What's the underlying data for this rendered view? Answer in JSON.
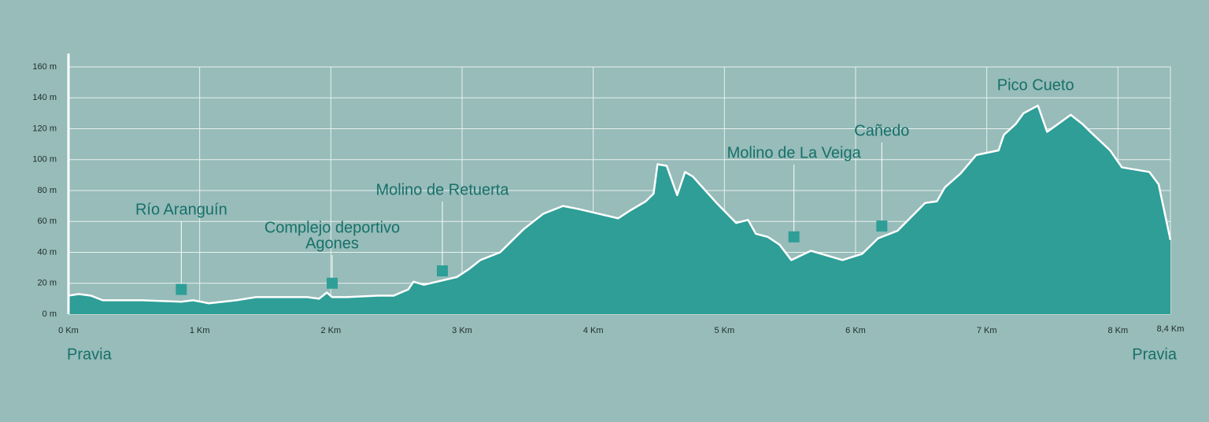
{
  "chart_data": {
    "type": "area",
    "x": [
      0,
      0.08,
      0.17,
      0.26,
      0.56,
      0.86,
      0.95,
      1.07,
      1.28,
      1.43,
      1.82,
      1.91,
      1.97,
      2.01,
      2.12,
      2.36,
      2.48,
      2.59,
      2.63,
      2.71,
      2.96,
      3.05,
      3.14,
      3.29,
      3.35,
      3.47,
      3.62,
      3.77,
      3.89,
      4.04,
      4.19,
      4.28,
      4.4,
      4.46,
      4.49,
      4.56,
      4.64,
      4.7,
      4.76,
      4.94,
      5.09,
      5.18,
      5.24,
      5.33,
      5.42,
      5.51,
      5.66,
      5.9,
      6.05,
      6.17,
      6.32,
      6.53,
      6.62,
      6.68,
      6.8,
      6.92,
      7.09,
      7.13,
      7.22,
      7.28,
      7.39,
      7.46,
      7.64,
      7.73,
      7.79,
      7.94,
      8.03,
      8.24,
      8.31,
      8.4
    ],
    "values": [
      12,
      13,
      12,
      9,
      9,
      8,
      9,
      7,
      9,
      11,
      11,
      10,
      14,
      11,
      11,
      12,
      12,
      16,
      21,
      19,
      24,
      29,
      35,
      40,
      45,
      55,
      65,
      70,
      68,
      65,
      62,
      67,
      73,
      78,
      97,
      96,
      77,
      92,
      89,
      72,
      59,
      61,
      52,
      50,
      45,
      35,
      41,
      35,
      39,
      49,
      54,
      72,
      73,
      82,
      91,
      103,
      106,
      116,
      123,
      130,
      135,
      118,
      129,
      123,
      118,
      106,
      95,
      92,
      84,
      48
    ],
    "color": "#2e9e97",
    "xlim": [
      0,
      8.4
    ],
    "ylim": [
      0,
      160
    ],
    "xticks": [
      {
        "value": 0,
        "label": "0 Km"
      },
      {
        "value": 1,
        "label": "1 Km"
      },
      {
        "value": 2,
        "label": "2 Km"
      },
      {
        "value": 3,
        "label": "3 Km"
      },
      {
        "value": 4,
        "label": "4 Km"
      },
      {
        "value": 5,
        "label": "5 Km"
      },
      {
        "value": 6,
        "label": "6 Km"
      },
      {
        "value": 7,
        "label": "7 Km"
      },
      {
        "value": 8,
        "label": "8 Km"
      },
      {
        "value": 8.4,
        "label": "8,4 Km"
      }
    ],
    "yticks": [
      {
        "value": 0,
        "label": "0 m"
      },
      {
        "value": 20,
        "label": "20 m"
      },
      {
        "value": 40,
        "label": "40 m"
      },
      {
        "value": 60,
        "label": "60 m"
      },
      {
        "value": 80,
        "label": "80 m"
      },
      {
        "value": 100,
        "label": "100 m"
      },
      {
        "value": 120,
        "label": "120 m"
      },
      {
        "value": 140,
        "label": "140 m"
      },
      {
        "value": 160,
        "label": "160 m"
      }
    ],
    "grid": true,
    "annotations": [
      {
        "label": [
          "Río Aranguín"
        ],
        "x": 0.86,
        "y": 16
      },
      {
        "label": [
          "Complejo deportivo",
          "Agones"
        ],
        "x": 2.01,
        "y": 20
      },
      {
        "label": [
          "Molino de Retuerta"
        ],
        "x": 2.85,
        "y": 28
      },
      {
        "label": [
          "Molino de La Veiga"
        ],
        "x": 5.53,
        "y": 50
      },
      {
        "label": [
          "Cañedo"
        ],
        "x": 6.2,
        "y": 57
      }
    ],
    "peak_label": "Pico Cueto",
    "start_label": "Pravia",
    "end_label": "Pravia"
  }
}
